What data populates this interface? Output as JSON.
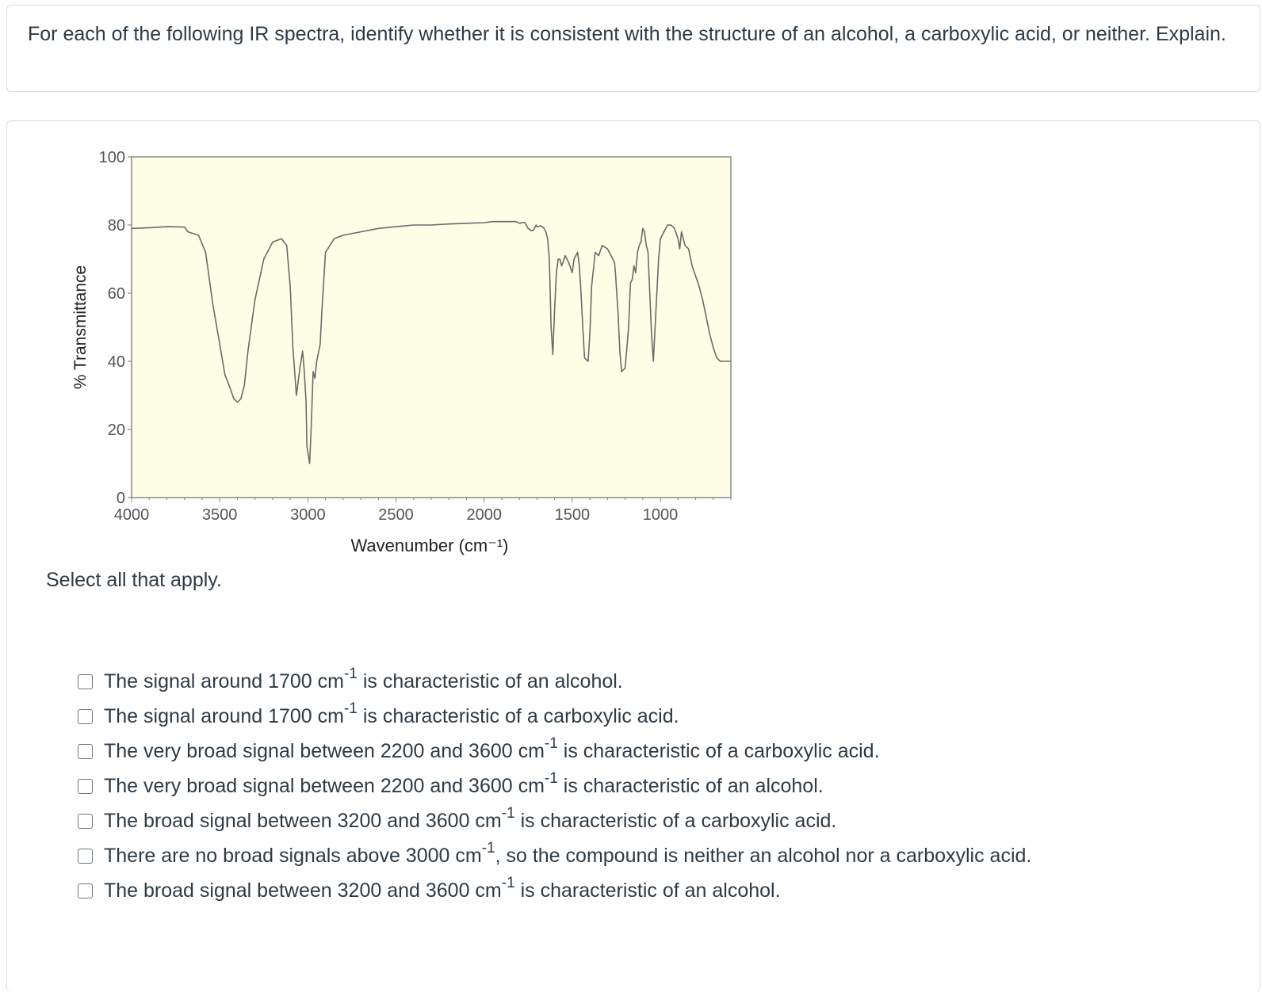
{
  "prompt": "For each of the following IR spectra, identify whether it is consistent with the structure of an alcohol, a carboxylic acid, or neither. Explain.",
  "instruction": "Select all that apply.",
  "chart_data": {
    "type": "line",
    "title": "",
    "xlabel": "Wavenumber (cm⁻¹)",
    "ylabel": "% Transmittance",
    "xlim": [
      4000,
      600
    ],
    "ylim": [
      0,
      100
    ],
    "xticks": [
      4000,
      3500,
      3000,
      2500,
      2000,
      1500,
      1000
    ],
    "yticks": [
      0,
      20,
      40,
      60,
      80,
      100
    ],
    "background": "#fefde6",
    "line_color": "#6b6b6b",
    "grid": false,
    "series": [
      {
        "x": [
          4000,
          3900,
          3800,
          3700,
          3680,
          3620,
          3580,
          3540,
          3500,
          3470,
          3440,
          3420,
          3400,
          3380,
          3360,
          3340,
          3300,
          3250,
          3200,
          3150,
          3120,
          3100,
          3085,
          3065,
          3045,
          3030,
          3020,
          3010,
          3005,
          2990,
          2980,
          2970,
          2960,
          2950,
          2930,
          2920,
          2900,
          2850,
          2800,
          2700,
          2600,
          2500,
          2400,
          2300,
          2200,
          2100,
          2000,
          1950,
          1900,
          1850,
          1820,
          1800,
          1770,
          1750,
          1730,
          1720,
          1710,
          1705,
          1700,
          1690,
          1680,
          1670,
          1660,
          1650,
          1640,
          1630,
          1620,
          1610,
          1600,
          1590,
          1580,
          1570,
          1560,
          1540,
          1520,
          1500,
          1490,
          1470,
          1460,
          1450,
          1440,
          1430,
          1410,
          1400,
          1390,
          1380,
          1370,
          1350,
          1330,
          1300,
          1270,
          1260,
          1255,
          1250,
          1245,
          1240,
          1230,
          1220,
          1200,
          1180,
          1170,
          1160,
          1150,
          1140,
          1130,
          1120,
          1110,
          1100,
          1090,
          1080,
          1070,
          1060,
          1050,
          1040,
          1030,
          1010,
          1000,
          980,
          960,
          940,
          920,
          900,
          890,
          880,
          860,
          840,
          820,
          800,
          780,
          760,
          740,
          720,
          700,
          680,
          660,
          640,
          620,
          600
        ],
        "y": [
          79,
          79.2,
          79.5,
          79.4,
          78,
          77,
          72,
          57,
          45,
          36,
          32,
          29,
          28,
          29,
          33,
          43,
          58,
          70,
          75,
          76,
          74,
          62,
          44,
          30,
          38,
          43,
          37,
          28,
          15,
          10,
          22,
          37,
          35,
          40,
          45,
          55,
          72,
          76,
          77,
          78,
          79,
          79.5,
          80,
          80,
          80.3,
          80.5,
          80.7,
          81,
          81,
          81,
          81,
          80.5,
          80.8,
          79,
          78.3,
          78.5,
          79.5,
          80,
          79.5,
          79.5,
          79.8,
          79.5,
          79,
          78,
          76,
          70,
          50,
          42,
          55,
          66,
          70,
          70,
          68,
          71,
          69,
          66,
          70,
          72,
          68,
          60,
          50,
          41,
          40,
          48,
          62,
          67,
          72,
          71,
          74,
          73,
          70,
          69,
          66,
          62,
          58,
          54,
          43,
          37,
          38,
          50,
          63,
          64,
          68,
          66,
          72,
          74,
          75,
          79,
          78,
          74,
          72,
          60,
          48,
          40,
          50,
          70,
          76,
          78,
          80,
          80,
          79,
          76,
          73,
          78,
          74,
          73,
          68,
          65,
          62,
          58,
          53,
          48,
          44,
          41,
          40,
          40,
          40,
          40
        ]
      }
    ]
  },
  "choices": [
    {
      "before": "The signal around 1700 cm",
      "sup": "-1",
      "after": " is characteristic of an alcohol."
    },
    {
      "before": "The signal around 1700 cm",
      "sup": "-1",
      "after": " is characteristic of a carboxylic acid."
    },
    {
      "before": "The very broad signal between 2200 and 3600 cm",
      "sup": "-1",
      "after": " is characteristic of a carboxylic acid."
    },
    {
      "before": "The very broad signal between 2200 and 3600 cm",
      "sup": "-1",
      "after": " is characteristic of an alcohol."
    },
    {
      "before": "The broad signal between 3200 and 3600 cm",
      "sup": "-1",
      "after": " is characteristic of a carboxylic acid."
    },
    {
      "before": "There are no broad signals above 3000 cm",
      "sup": "-1",
      "after": ", so the compound is neither an alcohol nor a carboxylic acid."
    },
    {
      "before": "The broad signal between 3200 and 3600 cm",
      "sup": "-1",
      "after": " is characteristic of an alcohol."
    }
  ]
}
